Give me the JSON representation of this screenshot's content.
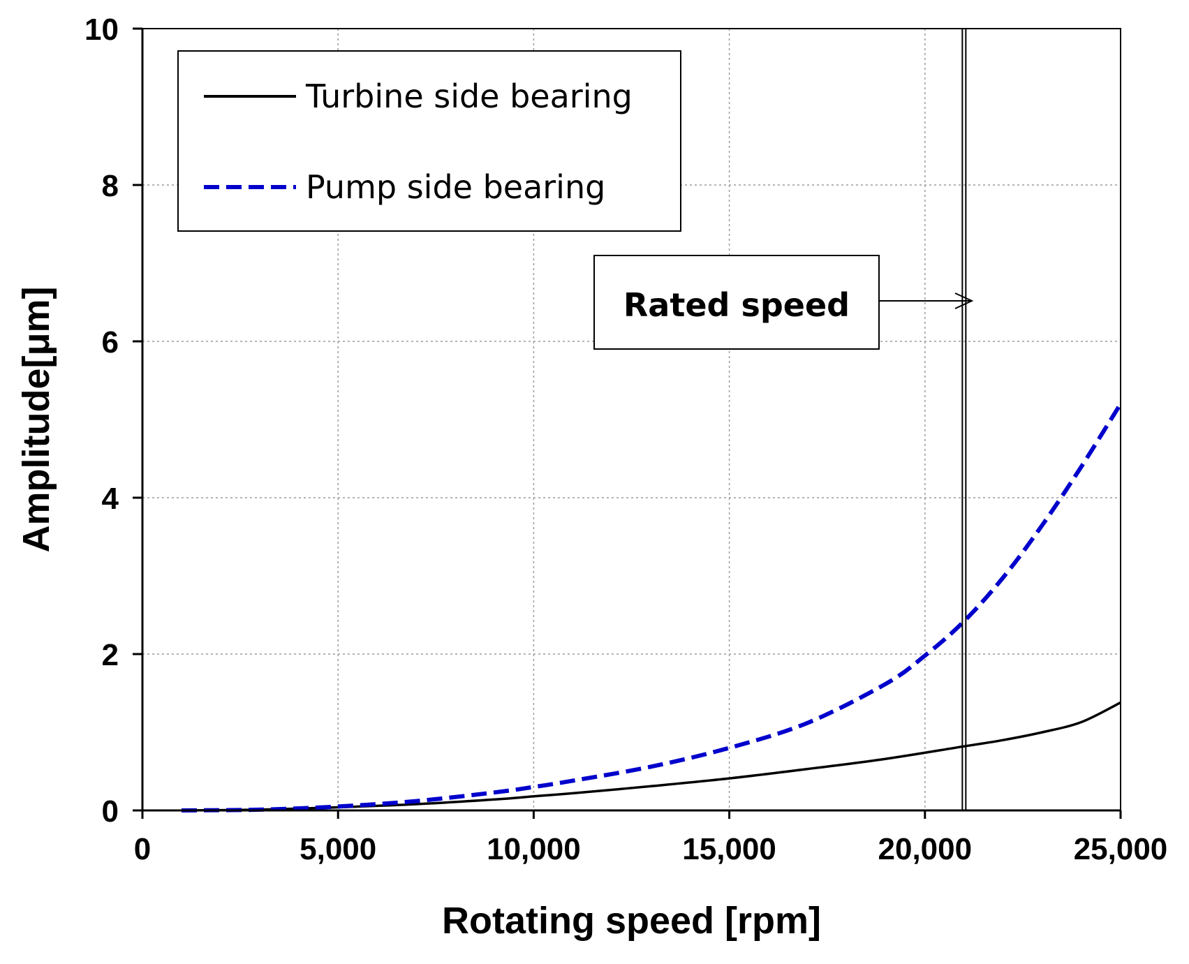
{
  "chart_data": {
    "type": "line",
    "xlabel": "Rotating speed [rpm]",
    "ylabel": "Amplitude[μm]",
    "xlim": [
      0,
      25000
    ],
    "ylim": [
      0,
      10
    ],
    "x_ticks": [
      0,
      5000,
      10000,
      15000,
      20000,
      25000
    ],
    "x_tick_labels": [
      "0",
      "5,000",
      "10,000",
      "15,000",
      "20,000",
      "25,000"
    ],
    "y_ticks": [
      0,
      2,
      4,
      6,
      8,
      10
    ],
    "y_tick_labels": [
      "0",
      "2",
      "4",
      "6",
      "8",
      "10"
    ],
    "grid": true,
    "legend_position": "top-left",
    "series": [
      {
        "name": "Turbine side bearing",
        "style": "solid",
        "color": "#000000",
        "x": [
          1000,
          3000,
          5000,
          7000,
          9000,
          10000,
          11000,
          13000,
          15000,
          17000,
          19000,
          21000,
          22000,
          23000,
          24000,
          25000
        ],
        "y": [
          0.0,
          0.01,
          0.04,
          0.08,
          0.14,
          0.18,
          0.22,
          0.31,
          0.41,
          0.53,
          0.66,
          0.82,
          0.9,
          1.0,
          1.13,
          1.38
        ]
      },
      {
        "name": "Pump side bearing",
        "style": "dashed",
        "color": "#0000cc",
        "x": [
          1000,
          3000,
          5000,
          7000,
          9000,
          10000,
          11000,
          13000,
          15000,
          17000,
          19000,
          20000,
          21000,
          22000,
          23000,
          24000,
          25000
        ],
        "y": [
          0.0,
          0.01,
          0.05,
          0.12,
          0.23,
          0.3,
          0.38,
          0.56,
          0.8,
          1.12,
          1.62,
          1.98,
          2.42,
          2.98,
          3.65,
          4.4,
          5.2
        ]
      }
    ],
    "annotations": [
      {
        "text": "Rated speed",
        "x": 21000,
        "type": "vertical-line-with-arrow"
      }
    ]
  }
}
